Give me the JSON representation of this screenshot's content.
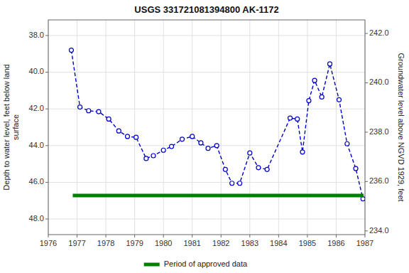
{
  "chart_data": {
    "type": "line",
    "title": "USGS 331721081394800 AK-1172",
    "ylabel": "Depth to water level, feet below land\nsurface",
    "y2label": "Groundwater level above NGVD 1929, feet",
    "xlim": [
      1976,
      1987
    ],
    "xticks": [
      1976,
      1977,
      1978,
      1979,
      1980,
      1981,
      1982,
      1983,
      1984,
      1985,
      1986,
      1987
    ],
    "ylim": [
      48.85,
      37.15
    ],
    "yticks": [
      {
        "value": 38.0,
        "label": "38.0"
      },
      {
        "value": 40.0,
        "label": "40.0"
      },
      {
        "value": 42.0,
        "label": "42.0"
      },
      {
        "value": 44.0,
        "label": "44.0"
      },
      {
        "value": 46.0,
        "label": "46.0"
      },
      {
        "value": 48.0,
        "label": "48.0"
      }
    ],
    "y2lim": [
      233.85,
      242.55
    ],
    "y2ticks": [
      {
        "value": 234.0,
        "label": "234.0"
      },
      {
        "value": 236.0,
        "label": "236.0"
      },
      {
        "value": 238.0,
        "label": "238.0"
      },
      {
        "value": 240.0,
        "label": "240.0"
      },
      {
        "value": 242.0,
        "label": "242.0"
      }
    ],
    "grid": true,
    "legend": "bottom",
    "series": [
      {
        "color": "#0000cc",
        "marker": "circle",
        "line_style": "dashed",
        "x": [
          1976.8,
          1977.1,
          1977.4,
          1977.75,
          1978.1,
          1978.45,
          1978.75,
          1979.05,
          1979.4,
          1979.65,
          1980.0,
          1980.28,
          1980.65,
          1981.0,
          1981.3,
          1981.55,
          1981.85,
          1982.15,
          1982.38,
          1982.65,
          1983.0,
          1983.3,
          1983.6,
          1984.4,
          1984.65,
          1984.83,
          1985.05,
          1985.25,
          1985.5,
          1985.78,
          1986.1,
          1986.38,
          1986.68,
          1986.93
        ],
        "values": [
          38.8,
          41.9,
          42.1,
          42.15,
          42.55,
          43.2,
          43.5,
          43.55,
          44.7,
          44.55,
          44.25,
          44.05,
          43.65,
          43.5,
          43.85,
          44.15,
          44.0,
          45.3,
          46.05,
          46.05,
          44.4,
          45.2,
          45.3,
          42.5,
          42.55,
          44.35,
          41.55,
          40.45,
          41.35,
          39.55,
          41.5,
          43.9,
          45.25,
          46.9
        ]
      },
      {
        "name": "Period of approved data",
        "color": "#008000",
        "line_style": "solid",
        "x": [
          1976.85,
          1986.95
        ],
        "values": [
          46.72,
          46.72
        ]
      }
    ]
  }
}
